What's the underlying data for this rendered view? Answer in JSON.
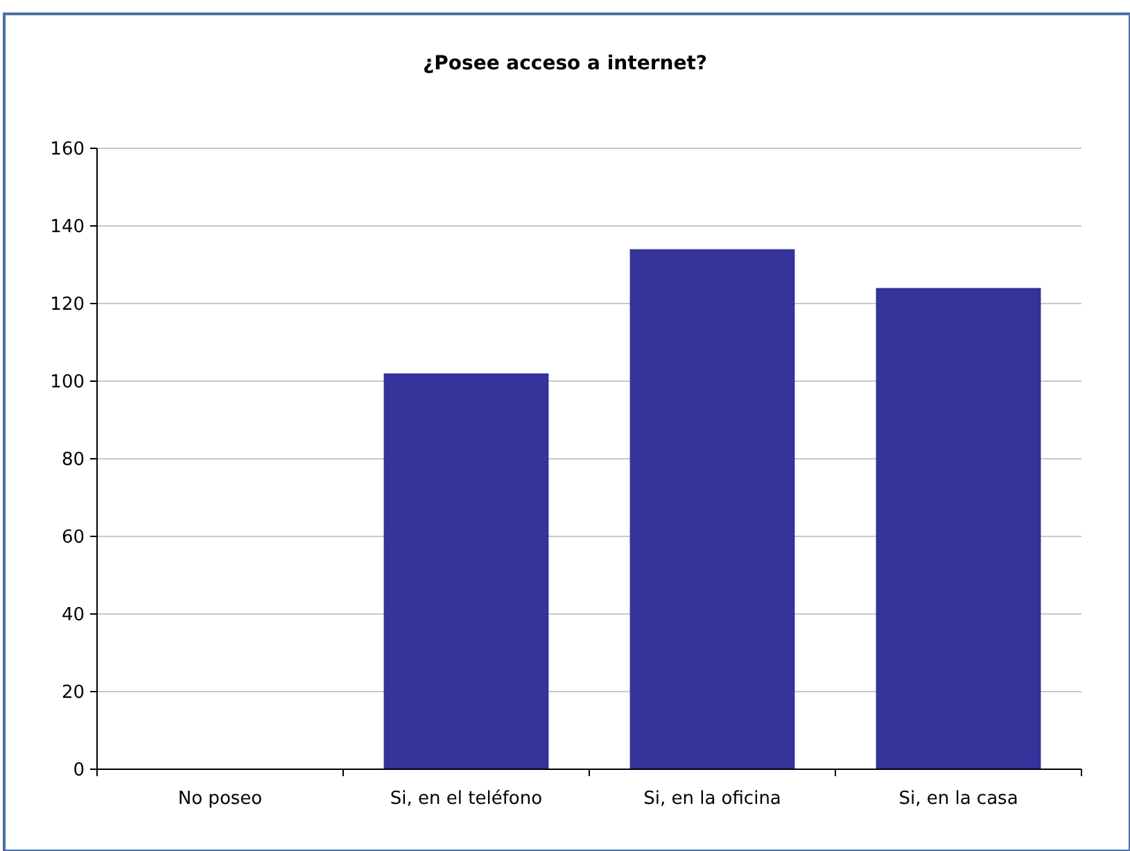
{
  "chart_data": {
    "type": "bar",
    "title": "¿Posee acceso a internet?",
    "categories": [
      "No poseo",
      "Si, en el teléfono",
      "Si, en la oficina",
      "Si, en la casa"
    ],
    "values": [
      0,
      102,
      134,
      124
    ],
    "color": "#333399",
    "ylim": [
      0,
      160
    ],
    "yticks": [
      0,
      20,
      40,
      60,
      80,
      100,
      120,
      140,
      160
    ],
    "grid": "y"
  }
}
